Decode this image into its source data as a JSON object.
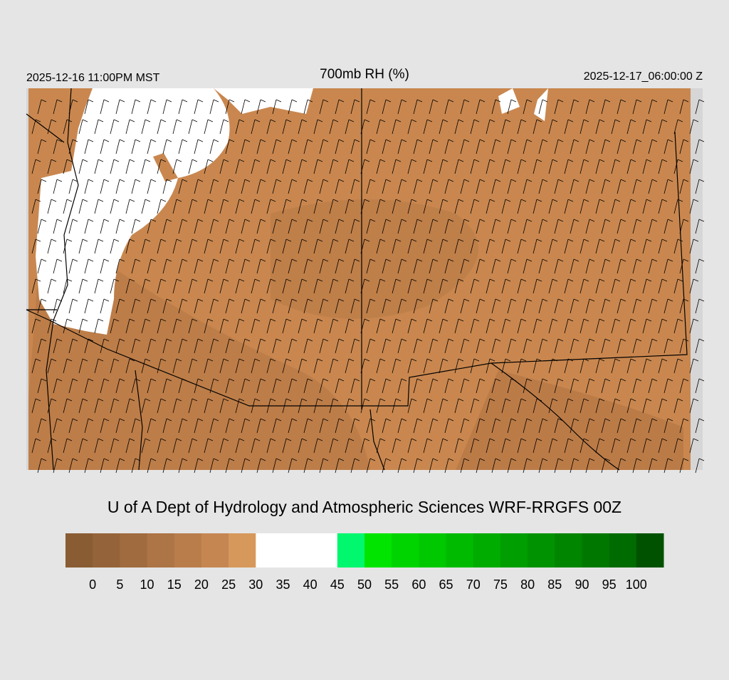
{
  "header": {
    "left": "2025-12-16 11:00PM MST",
    "title": "700mb RH (%)",
    "right": "2025-12-17_06:00:00 Z"
  },
  "caption": "U of A Dept of Hydrology and Atmospheric Sciences WRF-RRGFS 00Z",
  "colorbar": {
    "colors": [
      "#8a5c33",
      "#956339",
      "#a06b3f",
      "#ad7446",
      "#b97d4c",
      "#c68652",
      "#d7985b",
      "#ffffff",
      "#ffffff",
      "#ffffff",
      "#00f76e",
      "#00e400",
      "#00d400",
      "#00c800",
      "#00ba00",
      "#00ac00",
      "#009e00",
      "#009200",
      "#008500",
      "#007800",
      "#006b00",
      "#005200"
    ],
    "ticks": [
      0,
      5,
      10,
      15,
      20,
      25,
      30,
      35,
      40,
      45,
      50,
      55,
      60,
      65,
      70,
      75,
      80,
      85,
      90,
      95,
      100
    ]
  }
}
